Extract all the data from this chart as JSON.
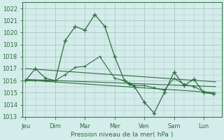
{
  "background_color": "#d4ecea",
  "grid_color": "#a8c8c4",
  "line_color": "#2d6e3e",
  "xlabel": "Pression niveau de la mer( hPa )",
  "ylim": [
    1013,
    1022.5
  ],
  "yticks": [
    1013,
    1014,
    1015,
    1016,
    1017,
    1018,
    1019,
    1020,
    1021,
    1022
  ],
  "x_labels": [
    "Jeu",
    "Dim",
    "Mar",
    "Mer",
    "Ven",
    "Sam",
    "Lun"
  ],
  "x_tick_positions": [
    0,
    1,
    2,
    3,
    4,
    5,
    6
  ],
  "xlim": [
    -0.1,
    6.6
  ],
  "series_main_x": [
    0.0,
    0.33,
    0.67,
    1.0,
    1.33,
    1.67,
    2.0,
    2.33,
    2.67,
    3.0,
    3.33,
    3.5,
    3.67,
    4.0,
    4.33,
    4.67,
    5.0,
    5.33,
    5.67,
    6.0,
    6.33
  ],
  "series_main_y": [
    1016.0,
    1017.0,
    1016.2,
    1016.0,
    1019.3,
    1020.5,
    1020.2,
    1021.5,
    1020.5,
    1018.0,
    1016.0,
    1015.7,
    1015.5,
    1014.2,
    1013.3,
    1015.0,
    1016.7,
    1015.6,
    1016.1,
    1015.0,
    1014.9
  ],
  "series2_x": [
    0.0,
    0.33,
    0.67,
    1.0,
    1.33,
    1.67,
    2.0,
    2.5,
    3.0,
    3.33,
    3.5,
    3.67,
    4.0,
    4.33,
    4.67,
    5.0,
    5.33,
    5.67,
    6.0,
    6.33
  ],
  "series2_y": [
    1016.0,
    1016.0,
    1016.0,
    1016.0,
    1016.5,
    1017.1,
    1017.2,
    1018.0,
    1016.2,
    1016.0,
    1015.8,
    1015.6,
    1015.6,
    1015.4,
    1015.2,
    1016.2,
    1015.7,
    1015.5,
    1015.1,
    1014.9
  ],
  "trend1_x": [
    0.0,
    6.4
  ],
  "trend1_y": [
    1017.0,
    1015.9
  ],
  "trend2_x": [
    0.0,
    6.4
  ],
  "trend2_y": [
    1016.1,
    1015.5
  ],
  "trend3_x": [
    0.0,
    6.4
  ],
  "trend3_y": [
    1016.05,
    1015.0
  ]
}
